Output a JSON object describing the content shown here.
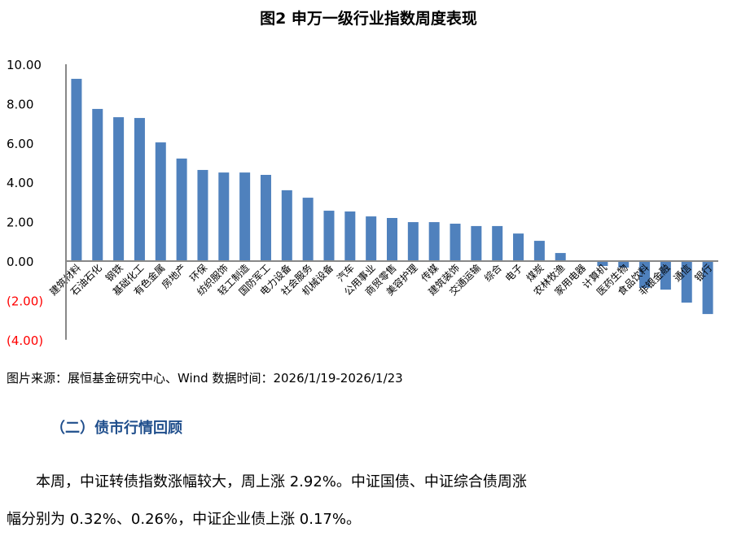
{
  "title": "图2 申万一级行业指数周度表现",
  "source": "图片来源：展恒基金研究中心、Wind  数据时间：2026/1/19-2026/1/23",
  "section": "（二）债市行情回顾",
  "paragraph_line1": "　　本周，中证转债指数涨幅较大，周上涨 2.92%。中证国债、中证综合债周涨",
  "paragraph_line2": "幅分别为 0.32%、0.26%，中证企业债上涨 0.17%。",
  "chart_data": {
    "type": "bar",
    "title": "图2 申万一级行业指数周度表现",
    "categories": [
      "建筑材料",
      "石油石化",
      "钢铁",
      "基础化工",
      "有色金属",
      "房地产",
      "环保",
      "纺织服饰",
      "轻工制造",
      "国防军工",
      "电力设备",
      "社会服务",
      "机械设备",
      "汽车",
      "公用事业",
      "商贸零售",
      "美容护理",
      "传媒",
      "建筑装饰",
      "交通运输",
      "综合",
      "电子",
      "煤炭",
      "农林牧渔",
      "家用电器",
      "计算机",
      "医药生物",
      "食品饮料",
      "非银金融",
      "通信",
      "银行"
    ],
    "values": [
      9.26,
      7.73,
      7.31,
      7.27,
      6.03,
      5.21,
      4.63,
      4.5,
      4.5,
      4.38,
      3.6,
      3.22,
      2.56,
      2.52,
      2.27,
      2.19,
      1.98,
      1.98,
      1.9,
      1.78,
      1.78,
      1.4,
      1.03,
      0.41,
      0.02,
      -0.25,
      -0.33,
      -1.36,
      -1.45,
      -2.11,
      -2.69
    ],
    "yticks": [
      "10.00",
      "8.00",
      "6.00",
      "4.00",
      "2.00",
      "0.00",
      "(2.00)",
      "(4.00)"
    ],
    "ylim": [
      -4,
      10
    ],
    "bar_color": "#4f81bd",
    "negative_tick_color": "#ff0000",
    "grid": false
  }
}
